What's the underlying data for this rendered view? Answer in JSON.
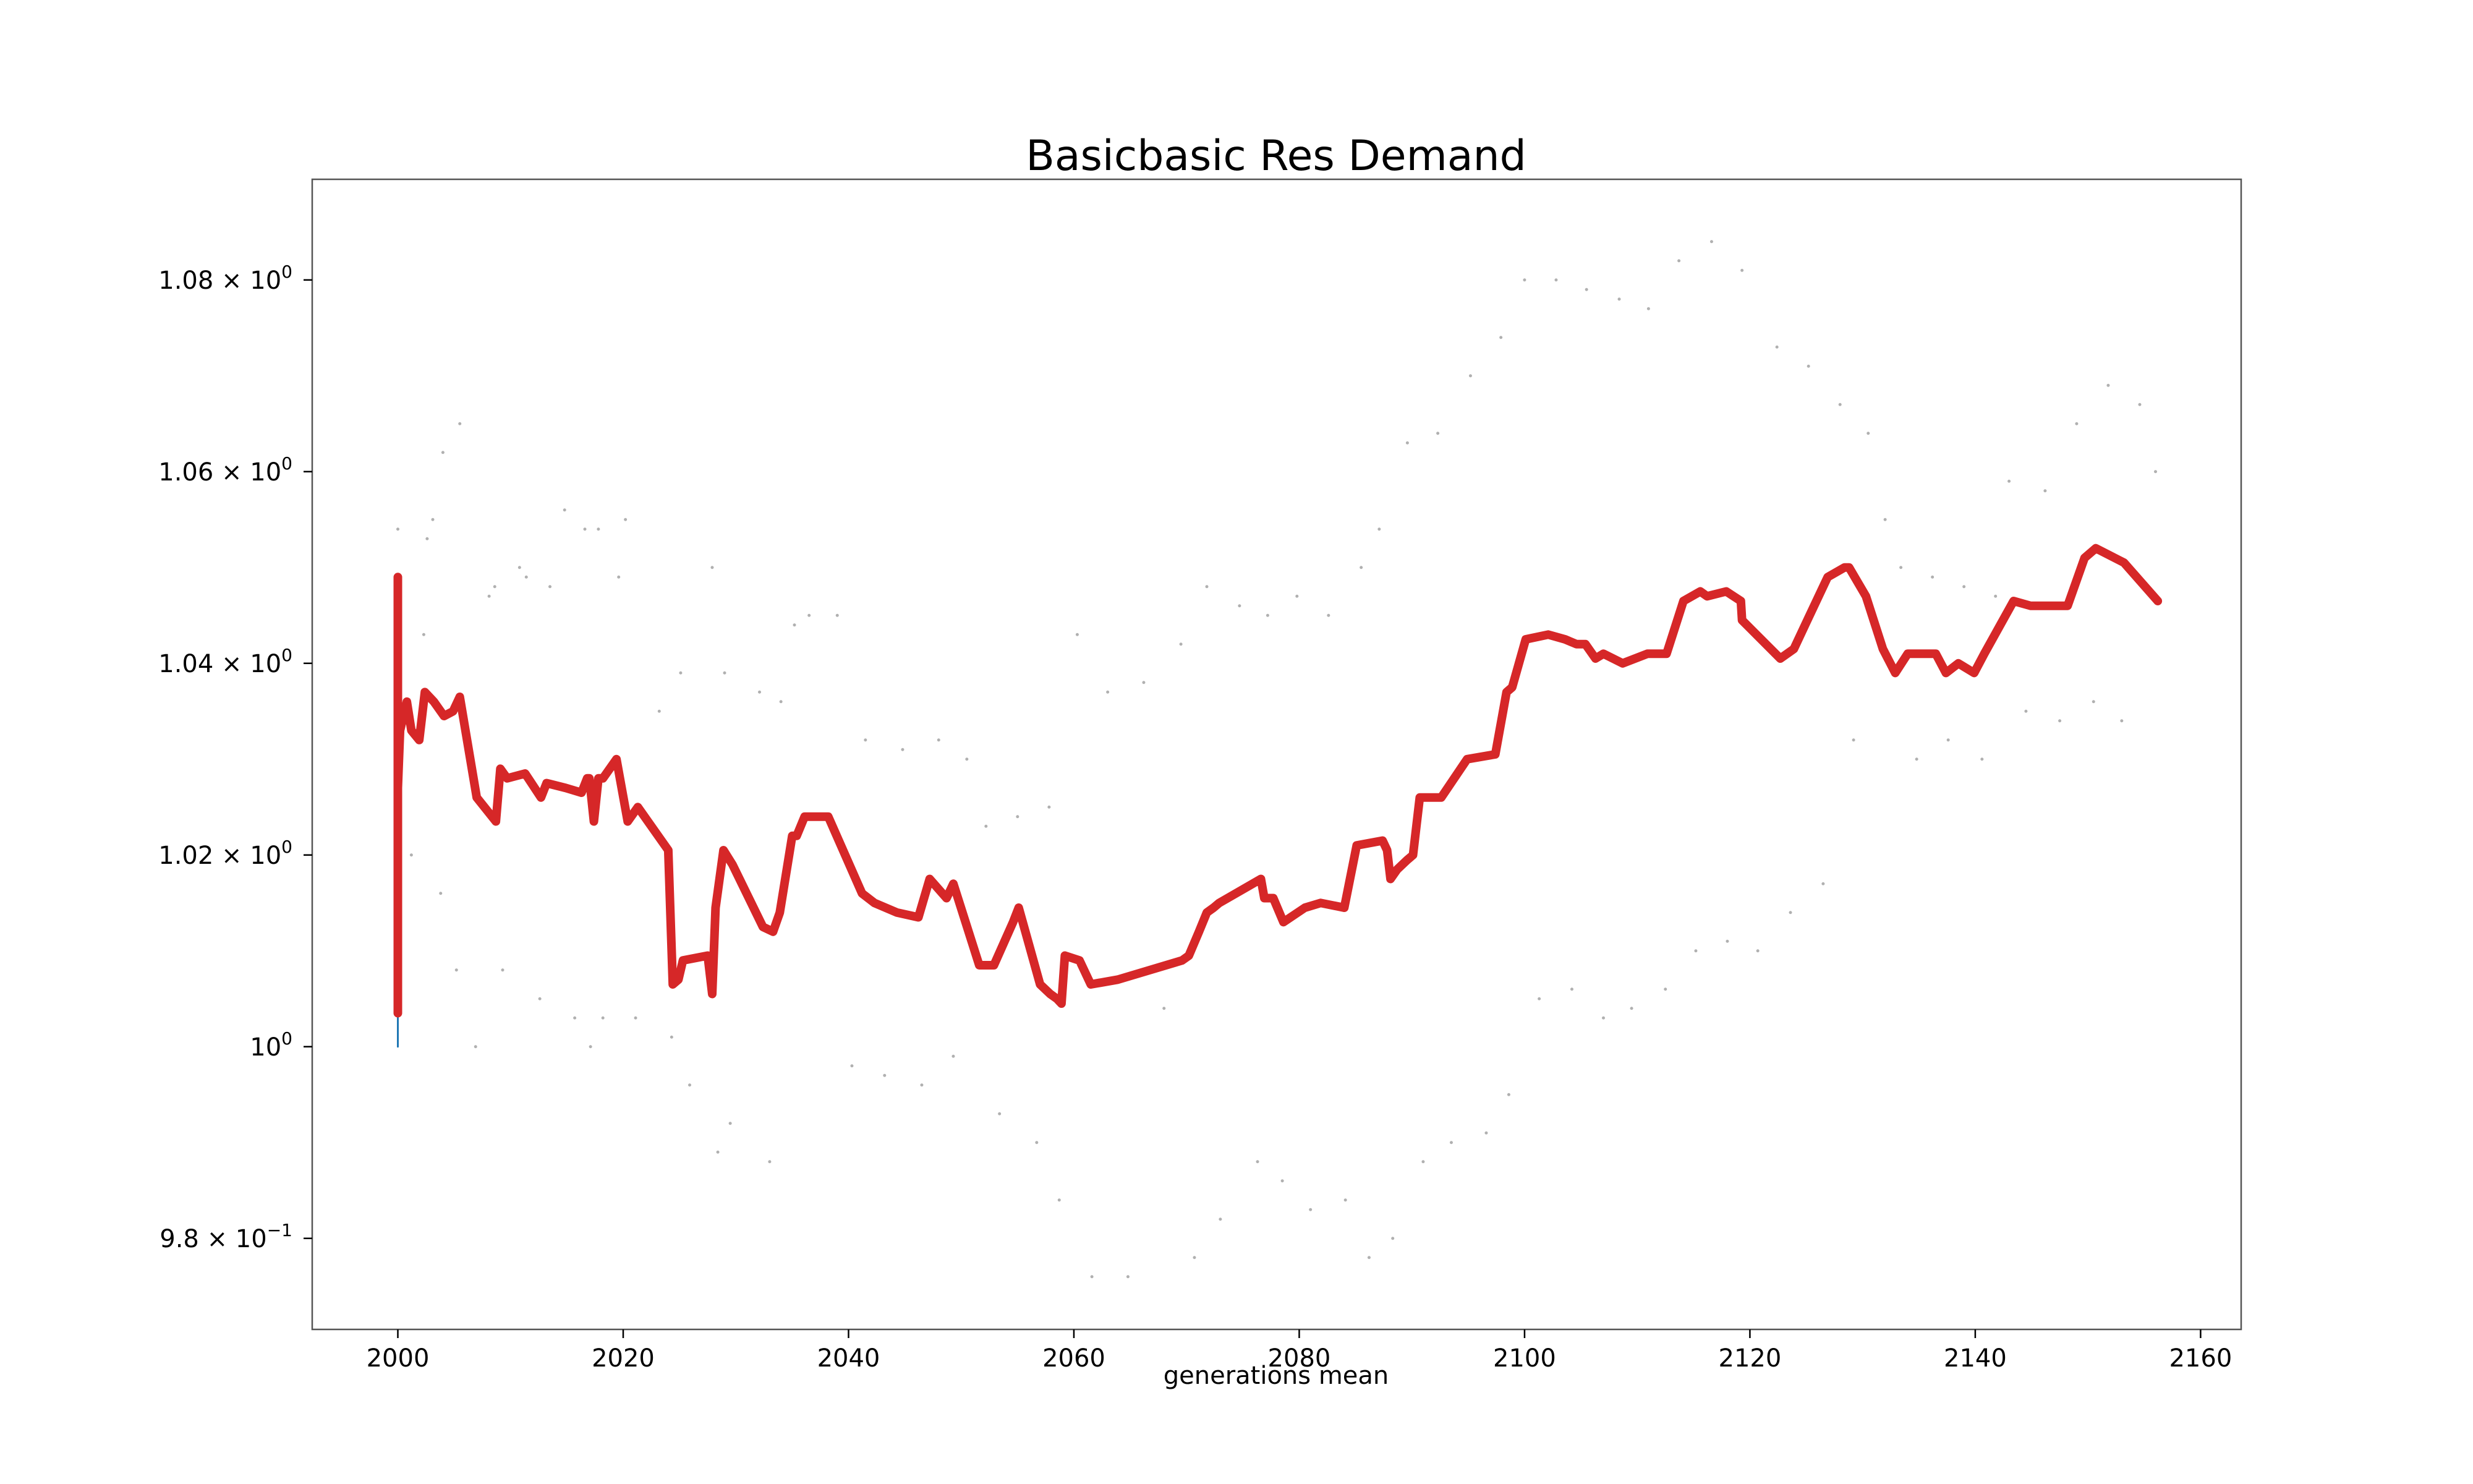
{
  "chart_data": {
    "type": "line",
    "title": "Basicbasic Res Demand",
    "xlabel": "generations mean",
    "ylabel": "",
    "xlim": [
      1992.4,
      2163.6
    ],
    "ylim": [
      0.9705,
      1.0905
    ],
    "x_ticks": [
      {
        "value": 2000,
        "label": "2000"
      },
      {
        "value": 2020,
        "label": "2020"
      },
      {
        "value": 2040,
        "label": "2040"
      },
      {
        "value": 2060,
        "label": "2060"
      },
      {
        "value": 2080,
        "label": "2080"
      },
      {
        "value": 2100,
        "label": "2100"
      },
      {
        "value": 2120,
        "label": "2120"
      },
      {
        "value": 2140,
        "label": "2140"
      },
      {
        "value": 2160,
        "label": "2160"
      }
    ],
    "y_ticks": [
      {
        "value": 0.98,
        "mantissa": "9.8",
        "exponent": "−1"
      },
      {
        "value": 1.0,
        "mantissa": "",
        "exponent": "0",
        "label": "10"
      },
      {
        "value": 1.02,
        "mantissa": "1.02",
        "exponent": "0"
      },
      {
        "value": 1.04,
        "mantissa": "1.04",
        "exponent": "0"
      },
      {
        "value": 1.06,
        "mantissa": "1.06",
        "exponent": "0"
      },
      {
        "value": 1.08,
        "mantissa": "1.08",
        "exponent": "0"
      }
    ],
    "colors": {
      "main_line": "#d62728",
      "thin_line": "#1f77b4",
      "scatter": "#b0b0b0"
    },
    "series": [
      {
        "role": "main",
        "x": [
          2000.0,
          2000.0,
          2000.0,
          2000.2,
          2000.8,
          2001.2,
          2001.9,
          2002.4,
          2003.2,
          2004.1,
          2004.9,
          2005.5,
          2007.0,
          2008.7,
          2009.1,
          2009.7,
          2011.3,
          2012.7,
          2013.2,
          2014.9,
          2016.3,
          2016.8,
          2017.0,
          2017.4,
          2017.8,
          2018.2,
          2019.4,
          2020.4,
          2021.3,
          2024.0,
          2024.4,
          2024.9,
          2025.3,
          2027.5,
          2027.9,
          2028.2,
          2028.9,
          2029.7,
          2032.4,
          2033.3,
          2033.9,
          2035.0,
          2035.4,
          2036.1,
          2038.2,
          2041.2,
          2042.3,
          2044.3,
          2046.2,
          2047.2,
          2048.7,
          2049.3,
          2051.6,
          2052.9,
          2054.6,
          2055.1,
          2057.0,
          2057.9,
          2058.5,
          2058.9,
          2059.2,
          2060.5,
          2061.5,
          2063.9,
          2069.6,
          2070.2,
          2071.1,
          2071.8,
          2072.4,
          2072.9,
          2076.6,
          2076.9,
          2077.7,
          2078.6,
          2080.5,
          2081.9,
          2084.0,
          2085.1,
          2085.1,
          2087.4,
          2087.8,
          2088.1,
          2088.7,
          2089.6,
          2090.1,
          2090.7,
          2092.6,
          2094.9,
          2097.4,
          2098.4,
          2098.9,
          2100.1,
          2102.1,
          2103.6,
          2104.6,
          2105.4,
          2106.3,
          2107.0,
          2108.7,
          2110.9,
          2112.6,
          2114.1,
          2115.6,
          2116.2,
          2117.9,
          2119.2,
          2119.3,
          2122.7,
          2123.9,
          2124.9,
          2126.9,
          2128.4,
          2128.8,
          2130.3,
          2131.8,
          2132.9,
          2134.0,
          2135.9,
          2136.5,
          2137.4,
          2138.5,
          2139.9,
          2140.8,
          2143.4,
          2144.9,
          2147.0,
          2148.2,
          2149.7,
          2150.7,
          2153.2,
          2156.2
        ],
        "y": [
          1.049,
          1.0035,
          1.027,
          1.033,
          1.036,
          1.033,
          1.032,
          1.037,
          1.036,
          1.0345,
          1.035,
          1.0365,
          1.026,
          1.0235,
          1.029,
          1.028,
          1.0285,
          1.026,
          1.0275,
          1.027,
          1.0265,
          1.028,
          1.028,
          1.0235,
          1.028,
          1.028,
          1.03,
          1.0235,
          1.025,
          1.0205,
          1.0065,
          1.007,
          1.009,
          1.0095,
          1.0055,
          1.0145,
          1.0205,
          1.019,
          1.0125,
          1.012,
          1.014,
          1.022,
          1.022,
          1.024,
          1.024,
          1.016,
          1.015,
          1.014,
          1.0135,
          1.0175,
          1.0155,
          1.017,
          1.0085,
          1.0085,
          1.013,
          1.0145,
          1.0065,
          1.0055,
          1.005,
          1.0045,
          1.0095,
          1.009,
          1.0065,
          1.007,
          1.009,
          1.0095,
          1.012,
          1.014,
          1.0145,
          1.015,
          1.0175,
          1.0155,
          1.0155,
          1.013,
          1.0145,
          1.015,
          1.0145,
          1.021,
          1.021,
          1.0215,
          1.0205,
          1.0175,
          1.0185,
          1.0195,
          1.02,
          1.026,
          1.026,
          1.03,
          1.0305,
          1.037,
          1.0375,
          1.0425,
          1.043,
          1.0425,
          1.042,
          1.042,
          1.0405,
          1.041,
          1.04,
          1.041,
          1.041,
          1.0465,
          1.0475,
          1.047,
          1.0475,
          1.0465,
          1.0445,
          1.0405,
          1.0415,
          1.044,
          1.049,
          1.05,
          1.05,
          1.047,
          1.0415,
          1.039,
          1.041,
          1.041,
          1.041,
          1.039,
          1.04,
          1.039,
          1.041,
          1.0465,
          1.046,
          1.046,
          1.046,
          1.051,
          1.052,
          1.0505,
          1.0465
        ]
      },
      {
        "role": "thin",
        "x": [
          2000.0,
          2000.0,
          2000.0
        ],
        "y": [
          1.0,
          1.004,
          1.0
        ]
      }
    ],
    "scatter": {
      "x": [
        2000.0,
        2000.0,
        2001.2,
        2002.3,
        2002.6,
        2003.1,
        2003.8,
        2004.0,
        2005.2,
        2005.5,
        2006.9,
        2008.1,
        2008.6,
        2009.3,
        2010.8,
        2011.4,
        2012.6,
        2013.5,
        2014.8,
        2015.7,
        2016.6,
        2017.1,
        2017.8,
        2018.2,
        2019.6,
        2020.2,
        2021.1,
        2023.2,
        2024.3,
        2025.1,
        2025.9,
        2027.9,
        2028.4,
        2029.0,
        2029.5,
        2032.1,
        2033.0,
        2034.0,
        2035.2,
        2036.5,
        2039.0,
        2040.3,
        2041.5,
        2043.2,
        2044.8,
        2046.5,
        2048.0,
        2049.3,
        2050.5,
        2052.2,
        2053.4,
        2055.0,
        2056.7,
        2057.8,
        2058.7,
        2060.3,
        2061.6,
        2063.0,
        2064.8,
        2066.2,
        2068.0,
        2069.5,
        2070.7,
        2071.8,
        2073.0,
        2074.7,
        2076.3,
        2077.2,
        2078.5,
        2079.8,
        2081.0,
        2082.6,
        2084.1,
        2085.5,
        2086.2,
        2087.1,
        2088.3,
        2089.6,
        2091.0,
        2092.3,
        2093.5,
        2095.2,
        2096.6,
        2097.9,
        2098.6,
        2100.0,
        2101.3,
        2102.8,
        2104.2,
        2105.5,
        2107.0,
        2108.4,
        2109.5,
        2111.0,
        2112.5,
        2113.7,
        2115.2,
        2116.6,
        2118.0,
        2119.3,
        2120.7,
        2122.4,
        2123.6,
        2125.2,
        2126.5,
        2128.0,
        2129.2,
        2130.5,
        2132.0,
        2133.4,
        2134.8,
        2136.2,
        2137.6,
        2139.0,
        2140.6,
        2141.8,
        2143.0,
        2144.5,
        2146.2,
        2147.5,
        2149.0,
        2150.5,
        2151.8,
        2153.0,
        2154.6,
        2156.0
      ],
      "y": [
        1.054,
        1.027,
        1.02,
        1.043,
        1.053,
        1.055,
        1.016,
        1.062,
        1.008,
        1.065,
        1.0,
        1.047,
        1.048,
        1.008,
        1.05,
        1.049,
        1.005,
        1.048,
        1.056,
        1.003,
        1.054,
        1.0,
        1.054,
        1.003,
        1.049,
        1.055,
        1.003,
        1.035,
        1.001,
        1.039,
        0.996,
        1.05,
        0.989,
        1.039,
        0.992,
        1.037,
        0.988,
        1.036,
        1.044,
        1.045,
        1.045,
        0.998,
        1.032,
        0.997,
        1.031,
        0.996,
        1.032,
        0.999,
        1.03,
        1.023,
        0.993,
        1.024,
        0.99,
        1.025,
        0.984,
        1.043,
        0.976,
        1.037,
        0.976,
        1.038,
        1.004,
        1.042,
        0.978,
        1.048,
        0.982,
        1.046,
        0.988,
        1.045,
        0.986,
        1.047,
        0.983,
        1.045,
        0.984,
        1.05,
        0.978,
        1.054,
        0.98,
        1.063,
        0.988,
        1.064,
        0.99,
        1.07,
        0.991,
        1.074,
        0.995,
        1.08,
        1.005,
        1.08,
        1.006,
        1.079,
        1.003,
        1.078,
        1.004,
        1.077,
        1.006,
        1.082,
        1.01,
        1.084,
        1.011,
        1.081,
        1.01,
        1.073,
        1.014,
        1.071,
        1.017,
        1.067,
        1.032,
        1.064,
        1.055,
        1.05,
        1.03,
        1.049,
        1.032,
        1.048,
        1.03,
        1.047,
        1.059,
        1.035,
        1.058,
        1.034,
        1.065,
        1.036,
        1.069,
        1.034,
        1.067,
        1.06
      ]
    }
  }
}
